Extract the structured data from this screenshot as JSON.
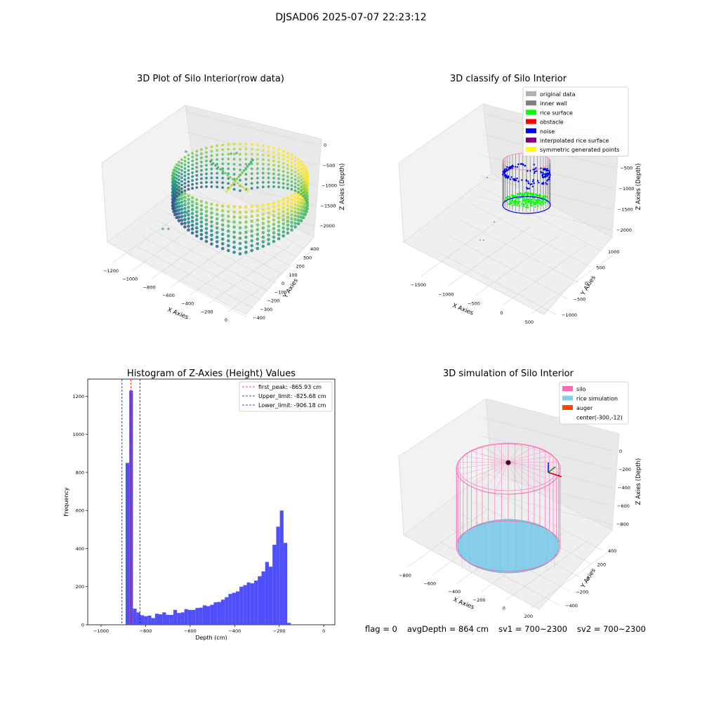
{
  "figure": {
    "suptitle": "DJSAD06 2025-07-07 22:23:12"
  },
  "status": {
    "flag": "flag = 0",
    "avg_depth": "avgDepth = 864 cm",
    "sv1": "sv1 = 700~2300",
    "sv2": "sv2 = 700~2300"
  },
  "colors": {
    "histogram_bar": "#4f4ffb",
    "first_peak_line": "#ff0000",
    "limit_line": "#0000cc",
    "silo": "#ff69b4",
    "rice_simulation": "#87ceeb",
    "auger": "#ff4500",
    "inner_wall": "#808080",
    "rice_surface": "#00ff00",
    "obstacle": "#ff0000",
    "noise": "#0000ff",
    "interpolated_rice_surface": "#800080",
    "symmetric_generated_points": "#ffff00",
    "original_data": "#b3b3b3"
  },
  "chart_data": [
    {
      "type": "scatter",
      "title": "3D Plot of Silo Interior(row data)",
      "xlabel": "X Axies",
      "ylabel": "Y Axies",
      "zlabel": "Z Axies (Depth)",
      "x_ticks": [
        "−1200",
        "−1000",
        "−800",
        "−600",
        "−400",
        "−200",
        "0"
      ],
      "y_ticks": [
        "400",
        "300",
        "200",
        "100",
        "0",
        "−100",
        "−200",
        "−300",
        "−400"
      ],
      "z_ticks": [
        "0",
        "−500",
        "−1000",
        "−1500",
        "−2000"
      ],
      "xlim": [
        -1300,
        100
      ],
      "ylim": [
        -450,
        450
      ],
      "zlim": [
        -2300,
        100
      ],
      "colormap": "viridis"
    },
    {
      "type": "scatter",
      "title": "3D classify of Silo Interior",
      "xlabel": "X Axies",
      "ylabel": "Y Axies",
      "zlabel": "Z Axies (Depth)",
      "x_ticks": [
        "−1500",
        "−1000",
        "−500",
        "0",
        "500"
      ],
      "y_ticks": [
        "1000",
        "500",
        "0",
        "−500",
        "−1000"
      ],
      "z_ticks": [
        "0",
        "−500",
        "−1000",
        "−1500",
        "−2000"
      ],
      "legend_position": "top-right",
      "legend": [
        {
          "label": "original data",
          "color": "#b3b3b3"
        },
        {
          "label": "inner wall",
          "color": "#808080"
        },
        {
          "label": "rice surface",
          "color": "#00ff00"
        },
        {
          "label": "obstacle",
          "color": "#ff0000"
        },
        {
          "label": "noise",
          "color": "#0000ff"
        },
        {
          "label": "interpolated rice surface",
          "color": "#800080"
        },
        {
          "label": "symmetric generated points",
          "color": "#ffff00"
        }
      ]
    },
    {
      "type": "bar",
      "title": "Histogram of Z-Axies (Height) Values",
      "xlabel": "Depth (cm)",
      "ylabel": "Frequency",
      "xlim": [
        -1060,
        50
      ],
      "ylim": [
        0,
        1290
      ],
      "x_ticks": [
        -1000,
        -800,
        -600,
        -400,
        -200,
        0
      ],
      "y_ticks": [
        0,
        200,
        400,
        600,
        800,
        1000,
        1200
      ],
      "bin_width": 16.5,
      "bin_start": -890,
      "values": [
        850,
        1230,
        85,
        65,
        50,
        45,
        48,
        35,
        58,
        55,
        65,
        52,
        52,
        78,
        62,
        65,
        82,
        78,
        78,
        88,
        90,
        102,
        98,
        105,
        118,
        120,
        132,
        145,
        162,
        168,
        175,
        200,
        208,
        222,
        218,
        232,
        255,
        280,
        330,
        305,
        420,
        515,
        600,
        430,
        10
      ],
      "lines": [
        {
          "label": "first_peak: -865.93 cm",
          "x": -865.93,
          "color": "#ff0000"
        },
        {
          "label": "Upper_limit: -825.68 cm",
          "x": -825.68,
          "color": "#0000cc"
        },
        {
          "label": "Lower_limit: -906.18 cm",
          "x": -906.18,
          "color": "#0000cc"
        }
      ],
      "legend_position": "top-right"
    },
    {
      "type": "scatter",
      "title": "3D simulation of Silo Interior",
      "xlabel": "X Axies",
      "ylabel": "Y Axies",
      "zlabel": "Z Axies (Depth)",
      "x_ticks": [
        "−800",
        "−600",
        "−400",
        "−200",
        "0",
        "200"
      ],
      "y_ticks": [
        "400",
        "200",
        "0",
        "−200",
        "−400"
      ],
      "z_ticks": [
        "0",
        "−200",
        "−400",
        "−600",
        "−800"
      ],
      "legend_position": "top-right",
      "legend": [
        {
          "label": "silo",
          "color": "#ff69b4"
        },
        {
          "label": "rice simulation",
          "color": "#87ceeb"
        },
        {
          "label": "auger",
          "color": "#ff4500"
        },
        {
          "label": "center(-300,-12)",
          "color": ""
        }
      ]
    }
  ]
}
